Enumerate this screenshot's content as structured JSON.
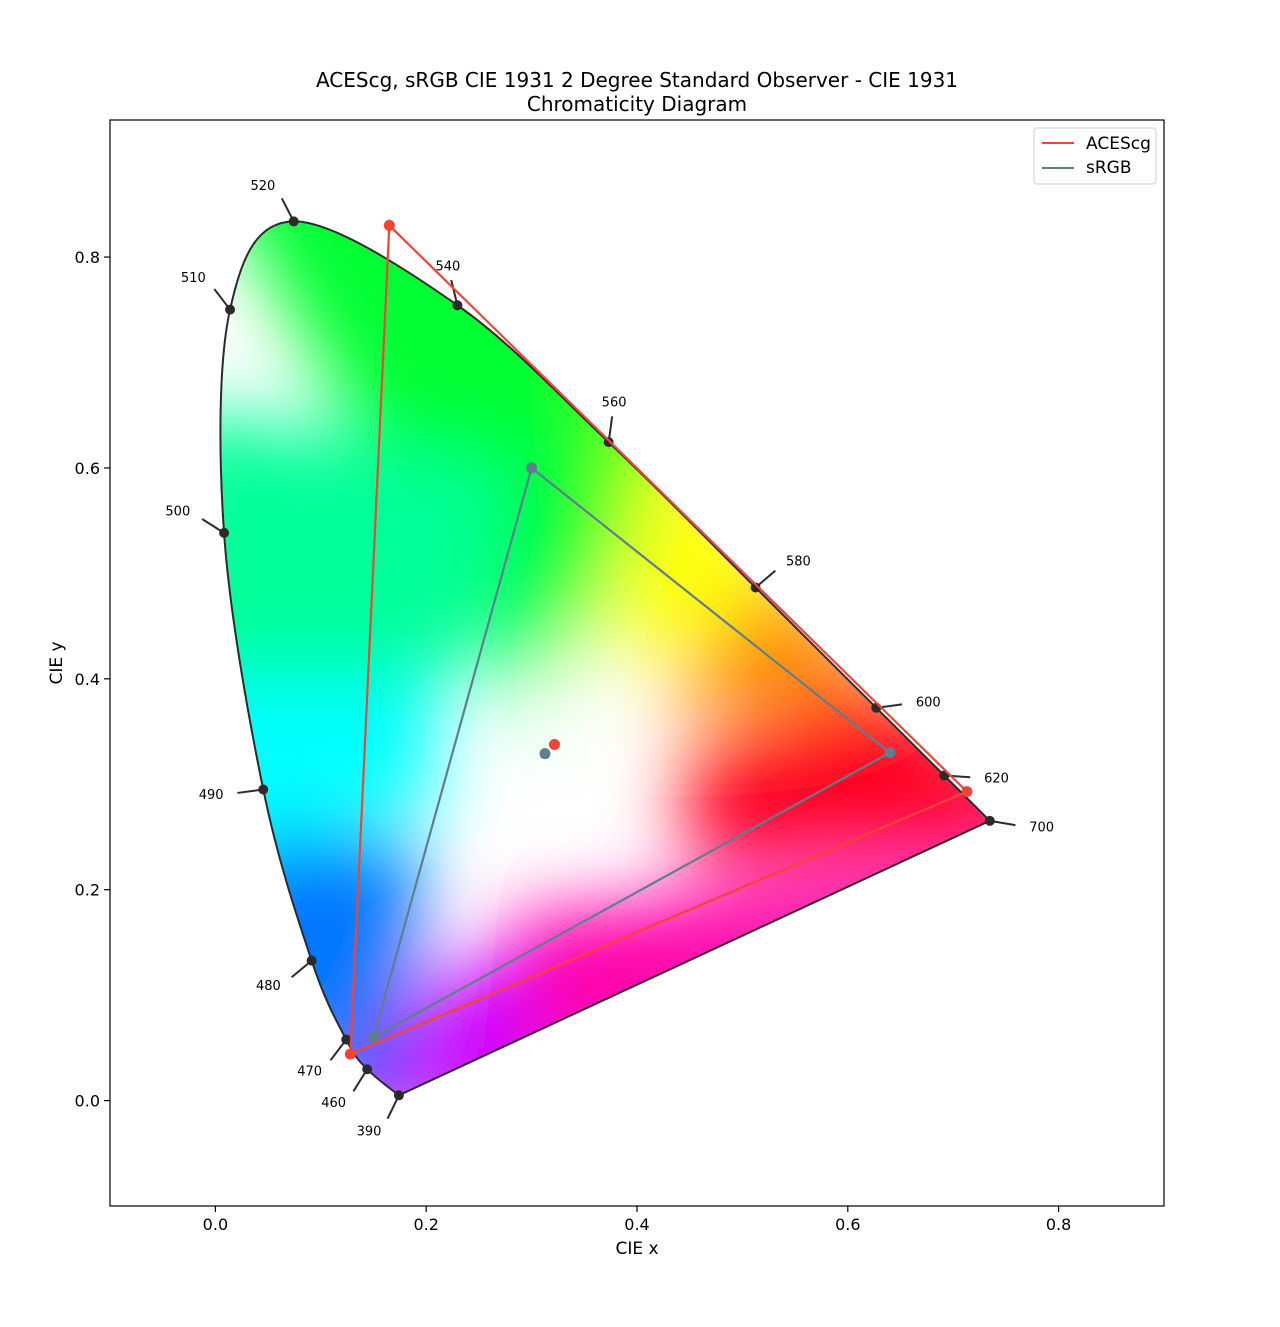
{
  "chart_data": {
    "type": "scatter",
    "title_line1": "ACEScg, sRGB CIE 1931 2 Degree Standard Observer - CIE 1931",
    "title_line2": "Chromaticity Diagram",
    "xlabel": "CIE x",
    "ylabel": "CIE y",
    "xlim": [
      -0.1,
      0.9
    ],
    "ylim": [
      -0.1,
      0.93
    ],
    "xticks": [
      0.0,
      0.2,
      0.4,
      0.6,
      0.8
    ],
    "yticks": [
      0.0,
      0.2,
      0.4,
      0.6,
      0.8
    ],
    "xtick_labels": [
      "0.0",
      "0.2",
      "0.4",
      "0.6",
      "0.8"
    ],
    "ytick_labels": [
      "0.0",
      "0.2",
      "0.4",
      "0.6",
      "0.8"
    ],
    "legend_position": "top-right",
    "spectral_locus": [
      [
        0.1741,
        0.005
      ],
      [
        0.144,
        0.0297
      ],
      [
        0.1241,
        0.0578
      ],
      [
        0.0913,
        0.1327
      ],
      [
        0.0454,
        0.295
      ],
      [
        0.0082,
        0.5384
      ],
      [
        0.0139,
        0.7502
      ],
      [
        0.0743,
        0.8338
      ],
      [
        0.2296,
        0.7543
      ],
      [
        0.3731,
        0.6245
      ],
      [
        0.5125,
        0.4866
      ],
      [
        0.627,
        0.3725
      ],
      [
        0.6915,
        0.3083
      ],
      [
        0.7347,
        0.2653
      ]
    ],
    "wavelength_labels": [
      {
        "nm": "390",
        "x": 0.1741,
        "y": 0.005
      },
      {
        "nm": "460",
        "x": 0.144,
        "y": 0.0297
      },
      {
        "nm": "470",
        "x": 0.1241,
        "y": 0.0578
      },
      {
        "nm": "480",
        "x": 0.0913,
        "y": 0.1327
      },
      {
        "nm": "490",
        "x": 0.0454,
        "y": 0.295
      },
      {
        "nm": "500",
        "x": 0.0082,
        "y": 0.5384
      },
      {
        "nm": "510",
        "x": 0.0139,
        "y": 0.7502
      },
      {
        "nm": "520",
        "x": 0.0743,
        "y": 0.8338
      },
      {
        "nm": "540",
        "x": 0.2296,
        "y": 0.7543
      },
      {
        "nm": "560",
        "x": 0.3731,
        "y": 0.6245
      },
      {
        "nm": "580",
        "x": 0.5125,
        "y": 0.4866
      },
      {
        "nm": "600",
        "x": 0.627,
        "y": 0.3725
      },
      {
        "nm": "620",
        "x": 0.6915,
        "y": 0.3083
      },
      {
        "nm": "700",
        "x": 0.7347,
        "y": 0.2653
      }
    ],
    "series": [
      {
        "name": "ACEScg",
        "color": "#f44336",
        "primaries": [
          [
            0.713,
            0.293
          ],
          [
            0.165,
            0.83
          ],
          [
            0.128,
            0.044
          ]
        ],
        "whitepoint": [
          0.32168,
          0.33767
        ]
      },
      {
        "name": "sRGB",
        "color": "#607d8b",
        "primaries": [
          [
            0.64,
            0.33
          ],
          [
            0.3,
            0.6
          ],
          [
            0.15,
            0.06
          ]
        ],
        "whitepoint": [
          0.3127,
          0.329
        ]
      }
    ]
  }
}
